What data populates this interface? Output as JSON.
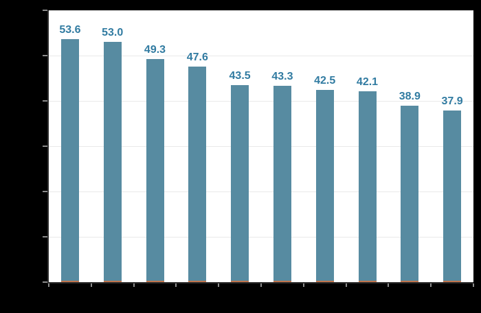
{
  "chart_data": {
    "type": "bar",
    "title": "",
    "values": [
      53.6,
      53.0,
      49.3,
      47.6,
      43.5,
      43.3,
      42.5,
      42.1,
      38.9,
      37.9
    ],
    "labels": [
      "53.6",
      "53.0",
      "49.3",
      "47.6",
      "43.5",
      "43.3",
      "42.5",
      "42.1",
      "38.9",
      "37.9"
    ],
    "ylim": [
      0,
      60
    ],
    "y_major_unit": 10,
    "grid": true,
    "legend_position": "none",
    "bar_count": 10
  },
  "colors": {
    "background": "#000000",
    "plot_background": "#ffffff",
    "bar_fill": "#578ba1",
    "bar_base_accent": "#c1764f",
    "data_label": "#317ba1",
    "gridline": "#e9e9e9",
    "axis_line": "#2e2e2e",
    "tick": "#8c8c8c"
  }
}
